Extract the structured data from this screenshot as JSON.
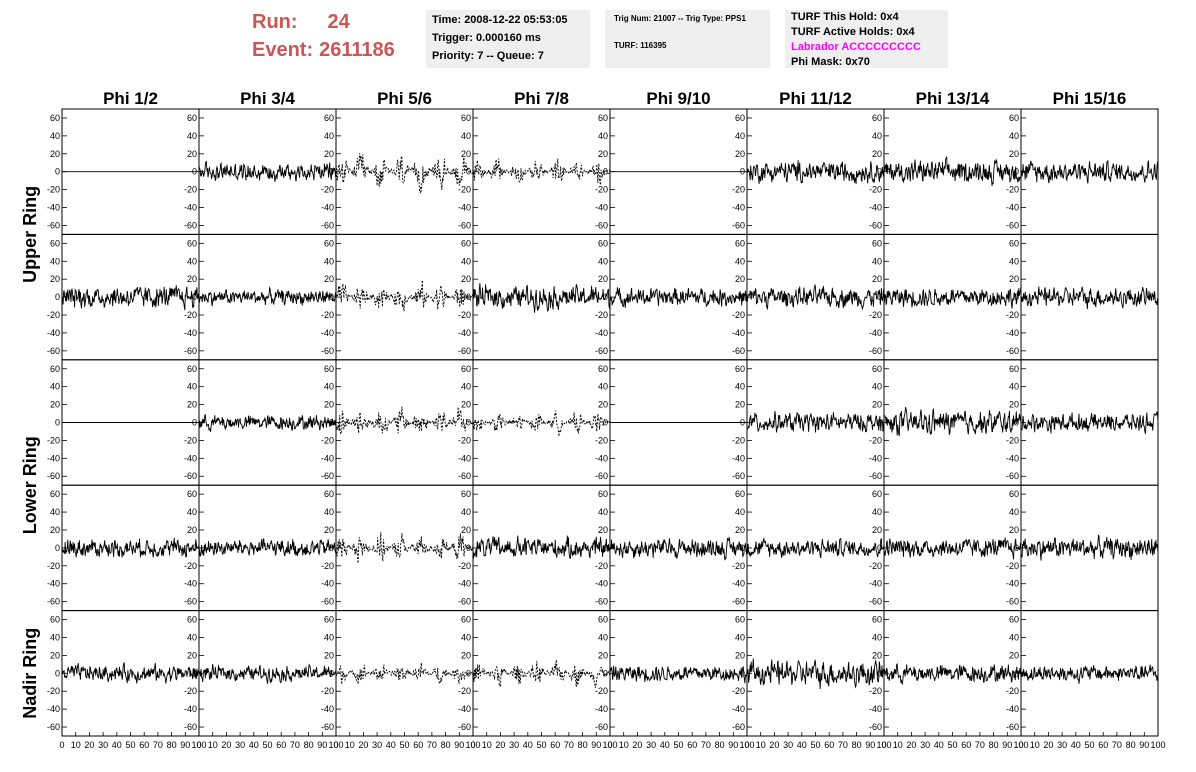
{
  "header": {
    "run_label": "Run:",
    "run_value": "24",
    "event_label": "Event:",
    "event_value": "2611186",
    "time_line": "Time: 2008-12-22 05:53:05",
    "trigger_line": "Trigger: 0.000160 ms",
    "priority_line": "Priority: 7 -- Queue: 7",
    "trig_line": "Trig Num: 21007 -- Trig Type: PPS1",
    "turf_line": "TURF: 116395",
    "turf_hold_line": "TURF This Hold: 0x4",
    "turf_active_line": "TURF Active Holds: 0x4",
    "labrador_line": "Labrador ACCCCCCCCC",
    "phi_mask_line": "Phi Mask: 0x70"
  },
  "chart_data": {
    "type": "line",
    "columns": [
      "Phi 1/2",
      "Phi 3/4",
      "Phi 5/6",
      "Phi 7/8",
      "Phi 9/10",
      "Phi 11/12",
      "Phi 13/14",
      "Phi 15/16"
    ],
    "ring_labels": [
      {
        "name": "Upper Ring",
        "rows": [
          0,
          1
        ]
      },
      {
        "name": "Lower Ring",
        "rows": [
          2,
          3
        ]
      },
      {
        "name": "Nadir Ring",
        "rows": [
          4
        ]
      }
    ],
    "y_ticks": [
      "60",
      "40",
      "20",
      "0",
      "-20",
      "-40",
      "-60"
    ],
    "y_tick_values": [
      60,
      40,
      20,
      0,
      -20,
      -40,
      -60
    ],
    "ylim": [
      -70,
      70
    ],
    "x_ticks": [
      "0",
      "10",
      "20",
      "30",
      "40",
      "50",
      "60",
      "70",
      "80",
      "90",
      "100"
    ],
    "x_tick_values": [
      0,
      10,
      20,
      30,
      40,
      50,
      60,
      70,
      80,
      90,
      100
    ],
    "xlim": [
      0,
      100
    ],
    "rows": [
      [
        {
          "style": "flat",
          "amp": 0
        },
        {
          "style": "solid",
          "amp": 12
        },
        {
          "style": "dashed",
          "amp": 20
        },
        {
          "style": "dashed",
          "amp": 14
        },
        {
          "style": "flat",
          "amp": 0
        },
        {
          "style": "solid",
          "amp": 14
        },
        {
          "style": "solid",
          "amp": 15
        },
        {
          "style": "solid",
          "amp": 14
        }
      ],
      [
        {
          "style": "solid",
          "amp": 15
        },
        {
          "style": "solid",
          "amp": 10
        },
        {
          "style": "dashed",
          "amp": 16
        },
        {
          "style": "solid",
          "amp": 15
        },
        {
          "style": "solid",
          "amp": 12
        },
        {
          "style": "solid",
          "amp": 13
        },
        {
          "style": "solid",
          "amp": 13
        },
        {
          "style": "solid",
          "amp": 13
        }
      ],
      [
        {
          "style": "flat",
          "amp": 0
        },
        {
          "style": "solid",
          "amp": 10
        },
        {
          "style": "dashed",
          "amp": 18
        },
        {
          "style": "dashed",
          "amp": 12
        },
        {
          "style": "flat",
          "amp": 0
        },
        {
          "style": "solid",
          "amp": 13
        },
        {
          "style": "solid",
          "amp": 16
        },
        {
          "style": "solid",
          "amp": 12
        }
      ],
      [
        {
          "style": "solid",
          "amp": 12
        },
        {
          "style": "solid",
          "amp": 12
        },
        {
          "style": "dashed",
          "amp": 16
        },
        {
          "style": "solid",
          "amp": 14
        },
        {
          "style": "solid",
          "amp": 13
        },
        {
          "style": "solid",
          "amp": 12
        },
        {
          "style": "solid",
          "amp": 13
        },
        {
          "style": "solid",
          "amp": 14
        }
      ],
      [
        {
          "style": "solid",
          "amp": 11
        },
        {
          "style": "solid",
          "amp": 10
        },
        {
          "style": "dashed",
          "amp": 12
        },
        {
          "style": "dashed",
          "amp": 14
        },
        {
          "style": "solid",
          "amp": 11
        },
        {
          "style": "solid",
          "amp": 17
        },
        {
          "style": "solid",
          "amp": 12
        },
        {
          "style": "solid",
          "amp": 11
        }
      ]
    ]
  }
}
